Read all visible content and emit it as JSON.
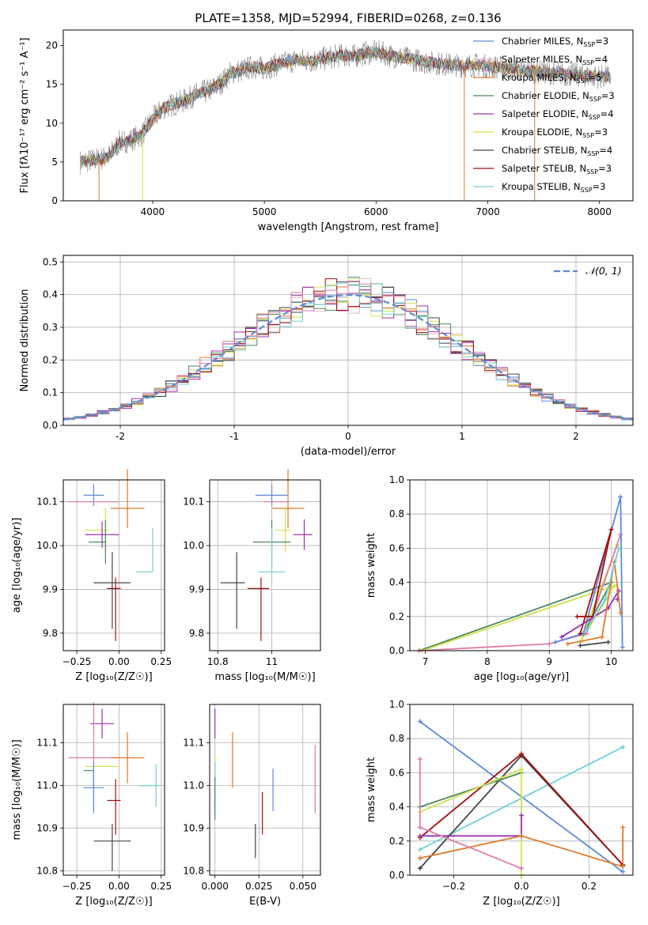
{
  "figure": {
    "title": "PLATE=1358, MJD=52994, FIBERID=0268, z=0.136"
  },
  "colors": {
    "chabrier_miles": "#5b8bd8",
    "salpeter_miles": "#e8b8c8",
    "kroupa_miles": "#e07a2a",
    "chabrier_elodie": "#4a8a5a",
    "salpeter_elodie": "#9b30b0",
    "kroupa_elodie": "#d4e04a",
    "chabrier_stelib": "#444444",
    "salpeter_stelib": "#a01010",
    "kroupa_stelib": "#70d0d4",
    "pink": "#e07aa8",
    "gauss": "#5b8bd8"
  },
  "chart_data": [
    {
      "id": "spectrum",
      "type": "line",
      "title": "PLATE=1358, MJD=52994, FIBERID=0268, z=0.136",
      "xlabel": "wavelength [Angstrom, rest frame]",
      "ylabel": "Flux [f$_\\lambda$10$^{-17}$ erg cm$^{-2}$ s$^{-1}$ A$^{-1}$]",
      "ylabel_display": "Flux [fλ10⁻¹⁷ erg cm⁻² s⁻¹ A⁻¹]",
      "xlim": [
        3200,
        8300
      ],
      "ylim": [
        0,
        22
      ],
      "xticks": [
        4000,
        5000,
        6000,
        7000,
        8000
      ],
      "yticks": [
        0,
        5,
        10,
        15,
        20
      ],
      "legend_position": "top-right",
      "legend": [
        {
          "label": "Chabrier MILES, N",
          "sub": "SSP",
          "n": "=3",
          "color": "#5b8bd8"
        },
        {
          "label": "Salpeter MILES, N",
          "sub": "SSP",
          "n": "=4",
          "color": "#e8b8c8"
        },
        {
          "label": "Kroupa MILES, N",
          "sub": "SSP",
          "n": "=5",
          "color": "#e07a2a"
        },
        {
          "label": "Chabrier ELODIE, N",
          "sub": "SSP",
          "n": "=3",
          "color": "#4a8a5a"
        },
        {
          "label": "Salpeter ELODIE, N",
          "sub": "SSP",
          "n": "=4",
          "color": "#9b30b0"
        },
        {
          "label": "Kroupa ELODIE, N",
          "sub": "SSP",
          "n": "=3",
          "color": "#d4e04a"
        },
        {
          "label": "Chabrier STELIB, N",
          "sub": "SSP",
          "n": "=4",
          "color": "#444444"
        },
        {
          "label": "Salpeter STELIB, N",
          "sub": "SSP",
          "n": "=3",
          "color": "#a01010"
        },
        {
          "label": "Kroupa STELIB, N",
          "sub": "SSP",
          "n": "=3",
          "color": "#70d0d4"
        }
      ],
      "envelope": {
        "x": [
          3350,
          3500,
          3600,
          3700,
          3800,
          3900,
          4000,
          4100,
          4200,
          4300,
          4400,
          4500,
          4600,
          4700,
          4800,
          4900,
          5000,
          5100,
          5200,
          5300,
          5400,
          5500,
          5600,
          5700,
          5800,
          5900,
          6000,
          6100,
          6200,
          6300,
          6400,
          6500,
          6600,
          6700,
          6800,
          6900,
          7000,
          7100,
          7200,
          7300,
          7400,
          7500,
          7600,
          7700,
          7800,
          7900,
          8000,
          8100
        ],
        "y": [
          5.0,
          5.3,
          5.6,
          7.5,
          7.8,
          8.5,
          10.5,
          12.0,
          12.5,
          13.0,
          13.8,
          14.2,
          15.0,
          16.5,
          16.8,
          17.3,
          17.0,
          17.5,
          17.8,
          18.2,
          18.0,
          18.2,
          18.5,
          18.8,
          18.6,
          19.0,
          19.2,
          18.8,
          18.5,
          18.3,
          18.0,
          17.8,
          17.6,
          17.5,
          17.4,
          17.5,
          17.3,
          17.2,
          17.0,
          16.8,
          16.7,
          16.6,
          16.4,
          16.3,
          16.2,
          16.1,
          16.0,
          15.9
        ]
      },
      "dips": [
        {
          "x": 3520,
          "y": 0
        },
        {
          "x": 3910,
          "y": 0
        },
        {
          "x": 6790,
          "y": 0
        },
        {
          "x": 7420,
          "y": 0
        }
      ]
    },
    {
      "id": "residuals",
      "type": "histogram",
      "xlabel": "(data-model)/error",
      "ylabel": "Normed distribution",
      "xlim": [
        -2.5,
        2.5
      ],
      "ylim": [
        0,
        0.52
      ],
      "xticks": [
        -2,
        -1,
        0,
        1,
        2
      ],
      "yticks": [
        0.0,
        0.1,
        0.2,
        0.3,
        0.4,
        0.5
      ],
      "legend_position": "top-right",
      "legend": [
        {
          "label": "𝒩(0, 1)",
          "style": "dashed",
          "color": "#5b8bd8"
        }
      ],
      "bin_width": 0.1,
      "bin_start": -2.5
    },
    {
      "id": "age_vs_Z",
      "type": "errorbar",
      "xlabel": "Z [log₁₀(Z/Z☉)]",
      "ylabel": "age  [log₁₀(age/yr)]",
      "xlim": [
        -0.33,
        0.27
      ],
      "ylim": [
        9.76,
        10.15
      ],
      "xticks": [
        -0.25,
        0.0,
        0.25
      ],
      "xtick_labels": [
        "−0.25",
        "0.00",
        "0.25"
      ],
      "yticks": [
        9.8,
        9.9,
        10.0,
        10.1
      ],
      "points": [
        {
          "x": -0.15,
          "y": 10.115,
          "xerr": [
            0.06,
            0.06
          ],
          "yerr": [
            0.025,
            0.025
          ],
          "color": "#5b8bd8"
        },
        {
          "x": -0.15,
          "y": 10.1,
          "xerr": [
            0.15,
            0.15
          ],
          "yerr": [
            0.0,
            0.0
          ],
          "color": "#e07aa8"
        },
        {
          "x": 0.05,
          "y": 10.085,
          "xerr": [
            0.1,
            0.1
          ],
          "yerr": [
            0.045,
            0.09
          ],
          "color": "#e07a2a"
        },
        {
          "x": -0.08,
          "y": 10.035,
          "xerr": [
            0.12,
            0.02
          ],
          "yerr": [
            0.05,
            0.05
          ],
          "color": "#d4e04a"
        },
        {
          "x": -0.1,
          "y": 10.025,
          "xerr": [
            0.1,
            0.1
          ],
          "yerr": [
            0.03,
            0.03
          ],
          "color": "#9b30b0"
        },
        {
          "x": -0.08,
          "y": 10.008,
          "xerr": [
            0.1,
            0.0
          ],
          "yerr": [
            0.05,
            0.05
          ],
          "color": "#4a8a5a"
        },
        {
          "x": 0.2,
          "y": 9.94,
          "xerr": [
            0.1,
            0.0
          ],
          "yerr": [
            0.0,
            0.1
          ],
          "color": "#70d0d4"
        },
        {
          "x": -0.04,
          "y": 9.915,
          "xerr": [
            0.11,
            0.11
          ],
          "yerr": [
            0.105,
            0.07
          ],
          "color": "#444444"
        },
        {
          "x": -0.02,
          "y": 9.902,
          "xerr": [
            0.05,
            0.03
          ],
          "yerr": [
            0.12,
            0.025
          ],
          "color": "#a01010"
        }
      ]
    },
    {
      "id": "age_vs_mass",
      "type": "errorbar",
      "xlabel": "mass [log₁₀(M/M☉)]",
      "ylabel": "",
      "xlim": [
        10.77,
        11.18
      ],
      "ylim": [
        9.76,
        10.15
      ],
      "xticks": [
        10.8,
        11.0
      ],
      "yticks": [
        9.8,
        9.9,
        10.0,
        10.1
      ],
      "points": [
        {
          "x": 11.0,
          "y": 10.115,
          "xerr": [
            0.06,
            0.06
          ],
          "yerr": [
            0.025,
            0.025
          ],
          "color": "#5b8bd8"
        },
        {
          "x": 11.02,
          "y": 10.1,
          "xerr": [
            0.05,
            0.04
          ],
          "yerr": [
            0.0,
            0.0
          ],
          "color": "#e07aa8"
        },
        {
          "x": 11.06,
          "y": 10.085,
          "xerr": [
            0.06,
            0.06
          ],
          "yerr": [
            0.045,
            0.09
          ],
          "color": "#e07a2a"
        },
        {
          "x": 11.05,
          "y": 10.035,
          "xerr": [
            0.04,
            0.02
          ],
          "yerr": [
            0.05,
            0.05
          ],
          "color": "#d4e04a"
        },
        {
          "x": 11.12,
          "y": 10.025,
          "xerr": [
            0.04,
            0.03
          ],
          "yerr": [
            0.035,
            0.035
          ],
          "color": "#9b30b0"
        },
        {
          "x": 11.0,
          "y": 10.008,
          "xerr": [
            0.07,
            0.07
          ],
          "yerr": [
            0.05,
            0.05
          ],
          "color": "#4a8a5a"
        },
        {
          "x": 11.0,
          "y": 9.94,
          "xerr": [
            0.05,
            0.05
          ],
          "yerr": [
            0.0,
            0.1
          ],
          "color": "#70d0d4"
        },
        {
          "x": 10.87,
          "y": 9.915,
          "xerr": [
            0.06,
            0.03
          ],
          "yerr": [
            0.105,
            0.07
          ],
          "color": "#444444"
        },
        {
          "x": 10.96,
          "y": 9.902,
          "xerr": [
            0.05,
            0.03
          ],
          "yerr": [
            0.12,
            0.025
          ],
          "color": "#a01010"
        }
      ]
    },
    {
      "id": "weight_vs_age",
      "type": "line",
      "xlabel": "age  [log₁₀(age/yr)]",
      "ylabel": "mass weight",
      "xlim": [
        6.75,
        10.35
      ],
      "ylim": [
        0,
        1.0
      ],
      "xticks": [
        7,
        8,
        9,
        10
      ],
      "yticks": [
        0.0,
        0.2,
        0.4,
        0.6,
        0.8,
        1.0
      ],
      "series": [
        {
          "color": "#4a8a5a",
          "x": [
            6.9,
            10.0,
            9.55
          ],
          "y": [
            0.0,
            0.4,
            0.1
          ]
        },
        {
          "color": "#d4e04a",
          "x": [
            6.95,
            10.05,
            9.5,
            10.1
          ],
          "y": [
            0.0,
            0.38,
            0.05,
            0.62
          ]
        },
        {
          "color": "#e07aa8",
          "x": [
            6.9,
            9.0,
            9.6,
            10.15
          ],
          "y": [
            0.0,
            0.04,
            0.1,
            0.68
          ]
        },
        {
          "color": "#5b8bd8",
          "x": [
            9.1,
            9.55,
            10.15,
            10.18
          ],
          "y": [
            0.05,
            0.1,
            0.9,
            0.02
          ]
        },
        {
          "color": "#a01010",
          "x": [
            9.45,
            9.7,
            10.0,
            9.5
          ],
          "y": [
            0.2,
            0.2,
            0.71,
            0.1
          ]
        },
        {
          "color": "#9b30b0",
          "x": [
            9.2,
            9.95,
            10.12,
            10.1
          ],
          "y": [
            0.08,
            0.25,
            0.35,
            0.3
          ]
        },
        {
          "color": "#e07a2a",
          "x": [
            9.3,
            9.85,
            10.05,
            10.15
          ],
          "y": [
            0.04,
            0.08,
            0.52,
            0.22
          ]
        },
        {
          "color": "#444444",
          "x": [
            9.5,
            9.95
          ],
          "y": [
            0.03,
            0.05
          ]
        },
        {
          "color": "#70d0d4",
          "x": [
            9.6,
            9.9,
            10.12
          ],
          "y": [
            0.12,
            0.3,
            0.6
          ]
        }
      ]
    },
    {
      "id": "mass_vs_Z",
      "type": "errorbar",
      "xlabel": "Z [log₁₀(Z/Z☉)]",
      "ylabel": "mass [log₁₀(M/M☉)]",
      "xlim": [
        -0.33,
        0.27
      ],
      "ylim": [
        10.79,
        11.19
      ],
      "xticks": [
        -0.25,
        0.0,
        0.25
      ],
      "xtick_labels": [
        "−0.25",
        "0.00",
        "0.25"
      ],
      "yticks": [
        10.8,
        10.9,
        11.0,
        11.1
      ],
      "points": [
        {
          "x": -0.1,
          "y": 11.145,
          "xerr": [
            0.07,
            0.07
          ],
          "yerr": [
            0.035,
            0.035
          ],
          "color": "#9b30b0"
        },
        {
          "x": -0.15,
          "y": 11.065,
          "xerr": [
            0.15,
            0.15
          ],
          "yerr": [
            0.065,
            0.13
          ],
          "color": "#e07aa8"
        },
        {
          "x": 0.05,
          "y": 11.065,
          "xerr": [
            0.1,
            0.1
          ],
          "yerr": [
            0.06,
            0.06
          ],
          "color": "#e07a2a"
        },
        {
          "x": -0.1,
          "y": 11.045,
          "xerr": [
            0.1,
            0.1
          ],
          "yerr": [
            0.0,
            0.0
          ],
          "color": "#d4e04a"
        },
        {
          "x": -0.15,
          "y": 11.035,
          "xerr": [
            0.06,
            0.0
          ],
          "yerr": [
            0.085,
            0.0
          ],
          "color": "#4a8a5a"
        },
        {
          "x": 0.22,
          "y": 11.0,
          "xerr": [
            0.1,
            0.02
          ],
          "yerr": [
            0.05,
            0.05
          ],
          "color": "#70d0d4"
        },
        {
          "x": -0.15,
          "y": 10.995,
          "xerr": [
            0.06,
            0.06
          ],
          "yerr": [
            0.06,
            0.06
          ],
          "color": "#5b8bd8"
        },
        {
          "x": -0.02,
          "y": 10.965,
          "xerr": [
            0.05,
            0.03
          ],
          "yerr": [
            0.08,
            0.05
          ],
          "color": "#a01010"
        },
        {
          "x": -0.04,
          "y": 10.87,
          "xerr": [
            0.11,
            0.11
          ],
          "yerr": [
            0.07,
            0.04
          ],
          "color": "#444444"
        }
      ]
    },
    {
      "id": "mass_vs_ebv",
      "type": "errorbar",
      "xlabel": "E(B-V)",
      "ylabel": "",
      "xlim": [
        -0.003,
        0.06
      ],
      "ylim": [
        10.79,
        11.19
      ],
      "xticks": [
        0.0,
        0.025,
        0.05
      ],
      "xtick_labels": [
        "0.000",
        "0.025",
        "0.050"
      ],
      "yticks": [
        10.8,
        10.9,
        11.0,
        11.1
      ],
      "points": [
        {
          "x": 0.0,
          "y": 11.145,
          "xerr": [
            0,
            0
          ],
          "yerr": [
            0.035,
            0.035
          ],
          "color": "#9b30b0"
        },
        {
          "x": 0.01,
          "y": 11.06,
          "xerr": [
            0,
            0
          ],
          "yerr": [
            0.065,
            0.065
          ],
          "color": "#e07a2a"
        },
        {
          "x": 0.0,
          "y": 11.02,
          "xerr": [
            0,
            0
          ],
          "yerr": [
            0.05,
            0.05
          ],
          "color": "#d4e04a"
        },
        {
          "x": 0.0,
          "y": 10.995,
          "xerr": [
            0,
            0
          ],
          "yerr": [
            0.06,
            0.06
          ],
          "color": "#70d0d4"
        },
        {
          "x": 0.0,
          "y": 10.97,
          "xerr": [
            0,
            0
          ],
          "yerr": [
            0.05,
            0.05
          ],
          "color": "#4a8a5a"
        },
        {
          "x": 0.057,
          "y": 11.015,
          "xerr": [
            0,
            0
          ],
          "yerr": [
            0.08,
            0.08
          ],
          "color": "#e07aa8"
        },
        {
          "x": 0.033,
          "y": 10.99,
          "xerr": [
            0,
            0
          ],
          "yerr": [
            0.05,
            0.05
          ],
          "color": "#5b8bd8"
        },
        {
          "x": 0.027,
          "y": 10.935,
          "xerr": [
            0,
            0
          ],
          "yerr": [
            0.05,
            0.05
          ],
          "color": "#a01010"
        },
        {
          "x": 0.023,
          "y": 10.87,
          "xerr": [
            0,
            0
          ],
          "yerr": [
            0.04,
            0.04
          ],
          "color": "#444444"
        }
      ]
    },
    {
      "id": "weight_vs_Z",
      "type": "line",
      "xlabel": "Z [log₁₀(Z/Z☉)]",
      "ylabel": "mass weight",
      "xlim": [
        -0.33,
        0.33
      ],
      "ylim": [
        0,
        1.0
      ],
      "xticks": [
        -0.2,
        0.0,
        0.2
      ],
      "xtick_labels": [
        "−0.2",
        "0.0",
        "0.2"
      ],
      "yticks": [
        0.0,
        0.2,
        0.4,
        0.6,
        0.8,
        1.0
      ],
      "series": [
        {
          "color": "#5b8bd8",
          "x": [
            -0.3,
            0.3
          ],
          "y": [
            0.9,
            0.02
          ]
        },
        {
          "color": "#70d0d4",
          "x": [
            -0.3,
            0.3
          ],
          "y": [
            0.15,
            0.75
          ]
        },
        {
          "color": "#444444",
          "x": [
            -0.3,
            0.0,
            0.3
          ],
          "y": [
            0.04,
            0.7,
            0.06
          ]
        },
        {
          "color": "#a01010",
          "x": [
            -0.3,
            0.0,
            0.3
          ],
          "y": [
            0.22,
            0.71,
            0.06
          ]
        },
        {
          "color": "#4a8a5a",
          "x": [
            -0.3,
            0.0
          ],
          "y": [
            0.4,
            0.6
          ]
        },
        {
          "color": "#d4e04a",
          "x": [
            -0.3,
            0.0,
            0.0
          ],
          "y": [
            0.37,
            0.62,
            0.0
          ]
        },
        {
          "color": "#9b30b0",
          "x": [
            -0.3,
            0.0,
            0.0
          ],
          "y": [
            0.23,
            0.23,
            0.35
          ]
        },
        {
          "color": "#e07a2a",
          "x": [
            -0.3,
            0.0,
            0.3,
            0.3
          ],
          "y": [
            0.1,
            0.23,
            0.05,
            0.28
          ]
        },
        {
          "color": "#e07aa8",
          "x": [
            -0.3,
            -0.3,
            0.0
          ],
          "y": [
            0.68,
            0.28,
            0.04
          ]
        }
      ]
    }
  ]
}
